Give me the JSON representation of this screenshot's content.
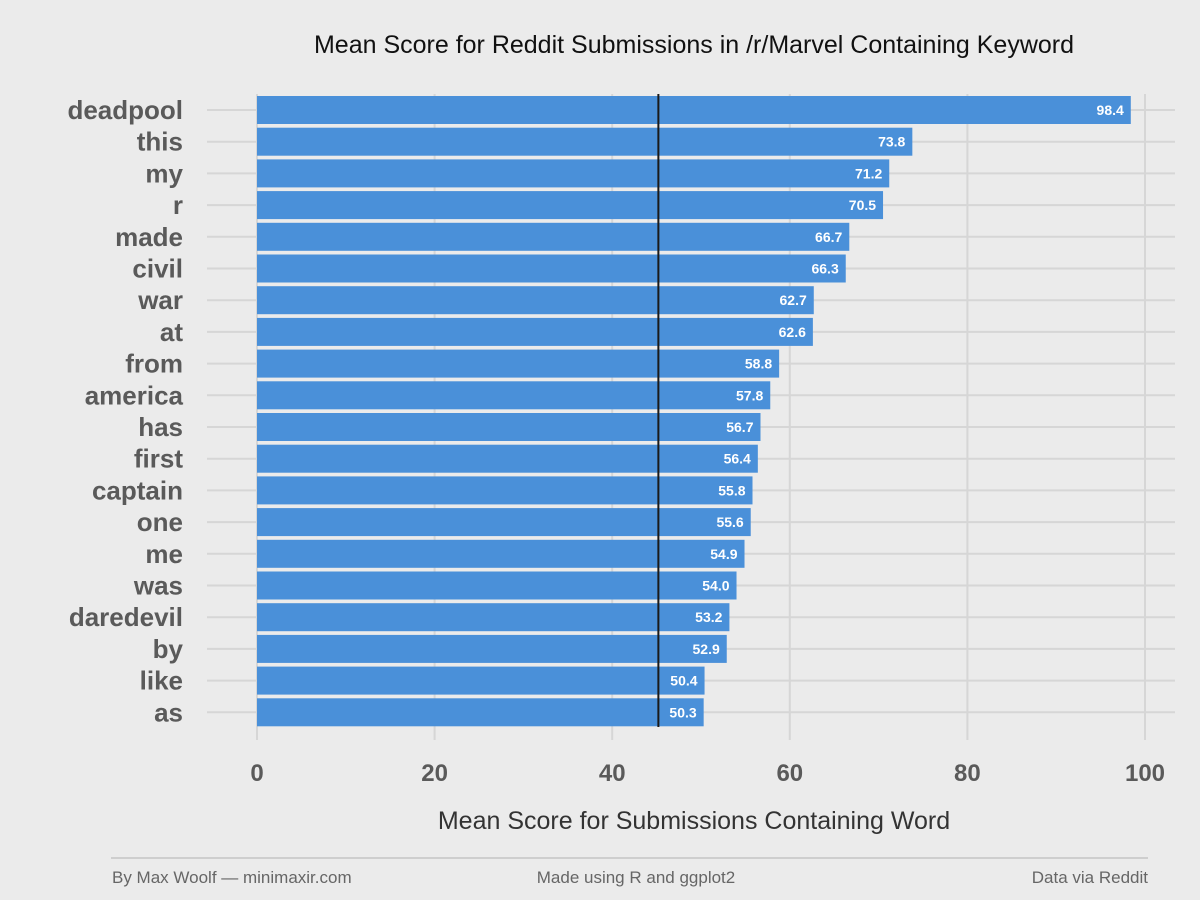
{
  "chart_data": {
    "type": "bar",
    "orientation": "horizontal",
    "title": "Mean Score for Reddit Submissions in /r/Marvel Containing Keyword",
    "xlabel": "Mean Score for Submissions Containing Word",
    "ylabel": "",
    "categories": [
      "deadpool",
      "this",
      "my",
      "r",
      "made",
      "civil",
      "war",
      "at",
      "from",
      "america",
      "has",
      "first",
      "captain",
      "one",
      "me",
      "was",
      "daredevil",
      "by",
      "like",
      "as"
    ],
    "values": [
      98.4,
      73.8,
      71.2,
      70.5,
      66.7,
      66.3,
      62.7,
      62.6,
      58.8,
      57.8,
      56.7,
      56.4,
      55.8,
      55.6,
      54.9,
      54.0,
      53.2,
      52.9,
      50.4,
      50.3
    ],
    "value_labels": [
      "98.4",
      "73.8",
      "71.2",
      "70.5",
      "66.7",
      "66.3",
      "62.7",
      "62.6",
      "58.8",
      "57.8",
      "56.7",
      "56.4",
      "55.8",
      "55.6",
      "54.9",
      "54.0",
      "53.2",
      "52.9",
      "50.4",
      "50.3"
    ],
    "xlim": [
      0,
      100
    ],
    "xticks": [
      0,
      20,
      40,
      60,
      80,
      100
    ],
    "xtick_labels": [
      "0",
      "20",
      "40",
      "60",
      "80",
      "100"
    ],
    "reference_line": 45.2,
    "grid": true,
    "legend": "none",
    "colors": {
      "bar": "#4a90d9",
      "background": "#ebebeb",
      "grid": "#d6d6d6",
      "reference_line": "#1a1a1a"
    }
  },
  "footer": {
    "left": "By Max Woolf — minimaxir.com",
    "center": "Made using R and ggplot2",
    "right": "Data via Reddit"
  }
}
